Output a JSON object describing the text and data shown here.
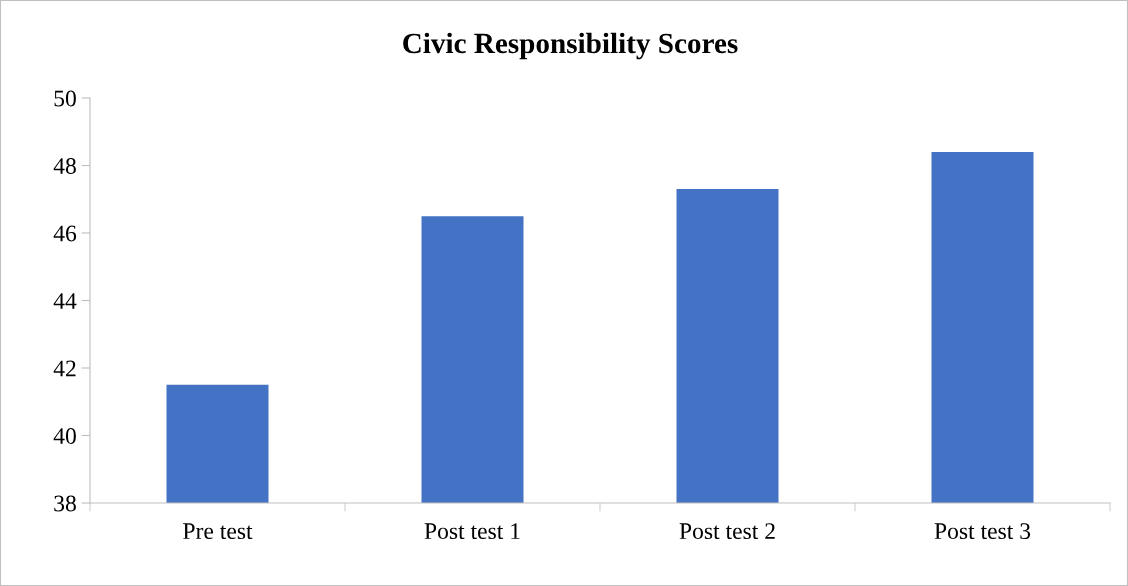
{
  "chart_data": {
    "type": "bar",
    "title": "Civic Responsibility Scores",
    "categories": [
      "Pre test",
      "Post test 1",
      "Post test 2",
      "Post test 3"
    ],
    "values": [
      41.5,
      46.5,
      47.3,
      48.4
    ],
    "color": "#4472c4",
    "ylim": [
      38,
      50
    ],
    "yticks": [
      38,
      40,
      42,
      44,
      46,
      48,
      50
    ],
    "grid": false,
    "legend": false
  }
}
